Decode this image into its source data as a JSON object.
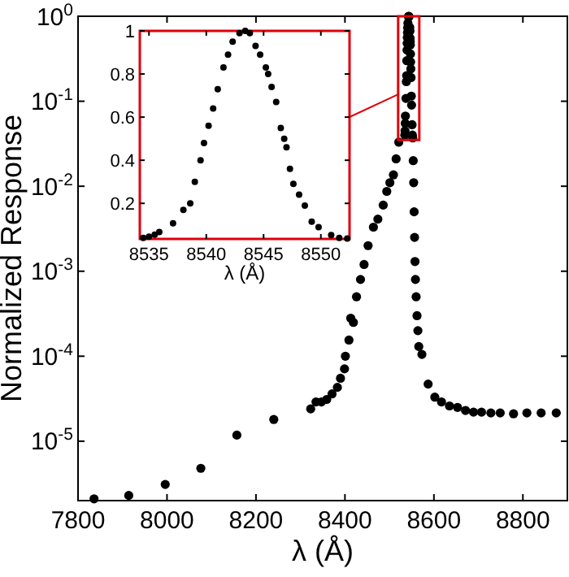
{
  "chart_data": [
    {
      "type": "scatter",
      "xlabel": "λ (Å)",
      "ylabel": "Normalized Response",
      "log": "y",
      "marker": "circle",
      "xlim": [
        7800,
        8900
      ],
      "ylim": [
        2e-06,
        1
      ],
      "xticks": [
        7800,
        8000,
        8200,
        8400,
        8600,
        8800
      ],
      "yticks": [
        {
          "value": 1,
          "label": "10$^{0}$"
        },
        {
          "value": 0.1,
          "label": "10$^{-1}$"
        },
        {
          "value": 0.01,
          "label": "10$^{-2}$"
        },
        {
          "value": 0.001,
          "label": "10$^{-3}$"
        },
        {
          "value": 0.0001,
          "label": "10$^{-4}$"
        },
        {
          "value": 1e-05,
          "label": "10$^{-5}$"
        }
      ],
      "series": [
        {
          "color": "#000000",
          "x": [
            7836,
            7914,
            7996,
            8076,
            8157,
            8240,
            8323,
            8335,
            8347,
            8359,
            8371,
            8383,
            8390,
            8399,
            8401,
            8409,
            8413,
            8419,
            8426,
            8435,
            8443,
            8452,
            8464,
            8474,
            8486,
            8494,
            8501,
            8509,
            8515,
            8521,
            8534.5,
            8535.0,
            8535.5,
            8535.9,
            8537.1,
            8538.0,
            8538.6,
            8539.0,
            8539.5,
            8539.8,
            8540.2,
            8540.6,
            8541.0,
            8541.5,
            8542.9,
            8543.4,
            8543.8,
            8545.7,
            8546.1,
            8546.5,
            8546.8,
            8547.0,
            8547.3,
            8547.6,
            8548.1,
            8548.6,
            8549.2,
            8549.8,
            8550.9,
            8551.6,
            8552.3,
            8553.5,
            8554.5,
            8555.5,
            8556.5,
            8557.5,
            8558.5,
            8560,
            8562,
            8564,
            8566,
            8573,
            8587,
            8602,
            8617,
            8635,
            8653,
            8671,
            8689,
            8707,
            8728,
            8749,
            8779,
            8809,
            8841,
            8875
          ],
          "values": [
            2.1e-06,
            2.3e-06,
            3.1e-06,
            4.8e-06,
            1.18e-05,
            1.8e-05,
            2.4e-05,
            2.9e-05,
            2.9e-05,
            3.1e-05,
            3.6e-05,
            4.3e-05,
            5.5e-05,
            7.1e-05,
            0.0001,
            0.000155,
            0.00028,
            0.00025,
            0.0005,
            0.0008,
            0.0012,
            0.002,
            0.0033,
            0.0041,
            0.006,
            0.0087,
            0.011,
            0.0136,
            0.021,
            0.033,
            0.04,
            0.045,
            0.055,
            0.067,
            0.108,
            0.17,
            0.2,
            0.3,
            0.4,
            0.48,
            0.56,
            0.64,
            0.73,
            0.83,
            0.99,
            1.0,
            0.99,
            0.74,
            0.67,
            0.55,
            0.5,
            0.46,
            0.36,
            0.29,
            0.24,
            0.19,
            0.115,
            0.09,
            0.053,
            0.04,
            0.037,
            0.02,
            0.011,
            0.005,
            0.0025,
            0.0013,
            0.0008,
            0.0005,
            0.0003,
            0.0002,
            0.00013,
            0.000105,
            4.7e-05,
            3.3e-05,
            2.9e-05,
            2.6e-05,
            2.5e-05,
            2.3e-05,
            2.2e-05,
            2.2e-05,
            2.15e-05,
            2.15e-05,
            2.1e-05,
            2.15e-05,
            2.15e-05,
            2.15e-05
          ]
        }
      ]
    },
    {
      "type": "scatter",
      "xlabel": "λ (Å)",
      "marker": "circle",
      "xlim": [
        8534.2,
        8552.5
      ],
      "ylim": [
        0.035,
        1
      ],
      "xticks": [
        8535,
        8540,
        8545,
        8550
      ],
      "yticks": [
        0.2,
        0.4,
        0.6,
        0.8,
        1
      ],
      "series": [
        {
          "color": "#000000",
          "x": [
            8534.5,
            8535.0,
            8535.5,
            8535.9,
            8537.1,
            8538.0,
            8538.6,
            8539.0,
            8539.5,
            8539.8,
            8540.2,
            8540.6,
            8541.0,
            8541.5,
            8541.9,
            8542.3,
            8542.9,
            8543.4,
            8543.8,
            8544.3,
            8544.7,
            8545.2,
            8545.4,
            8545.7,
            8546.1,
            8546.5,
            8546.8,
            8547.0,
            8547.3,
            8547.6,
            8548.1,
            8548.6,
            8549.2,
            8549.8,
            8550.9,
            8551.6,
            8552.3
          ],
          "values": [
            0.04,
            0.045,
            0.055,
            0.067,
            0.108,
            0.17,
            0.2,
            0.3,
            0.4,
            0.48,
            0.56,
            0.64,
            0.73,
            0.83,
            0.89,
            0.95,
            0.99,
            1.0,
            0.99,
            0.93,
            0.89,
            0.83,
            0.8,
            0.74,
            0.67,
            0.55,
            0.5,
            0.46,
            0.36,
            0.29,
            0.24,
            0.19,
            0.115,
            0.09,
            0.053,
            0.04,
            0.037
          ]
        }
      ]
    }
  ]
}
